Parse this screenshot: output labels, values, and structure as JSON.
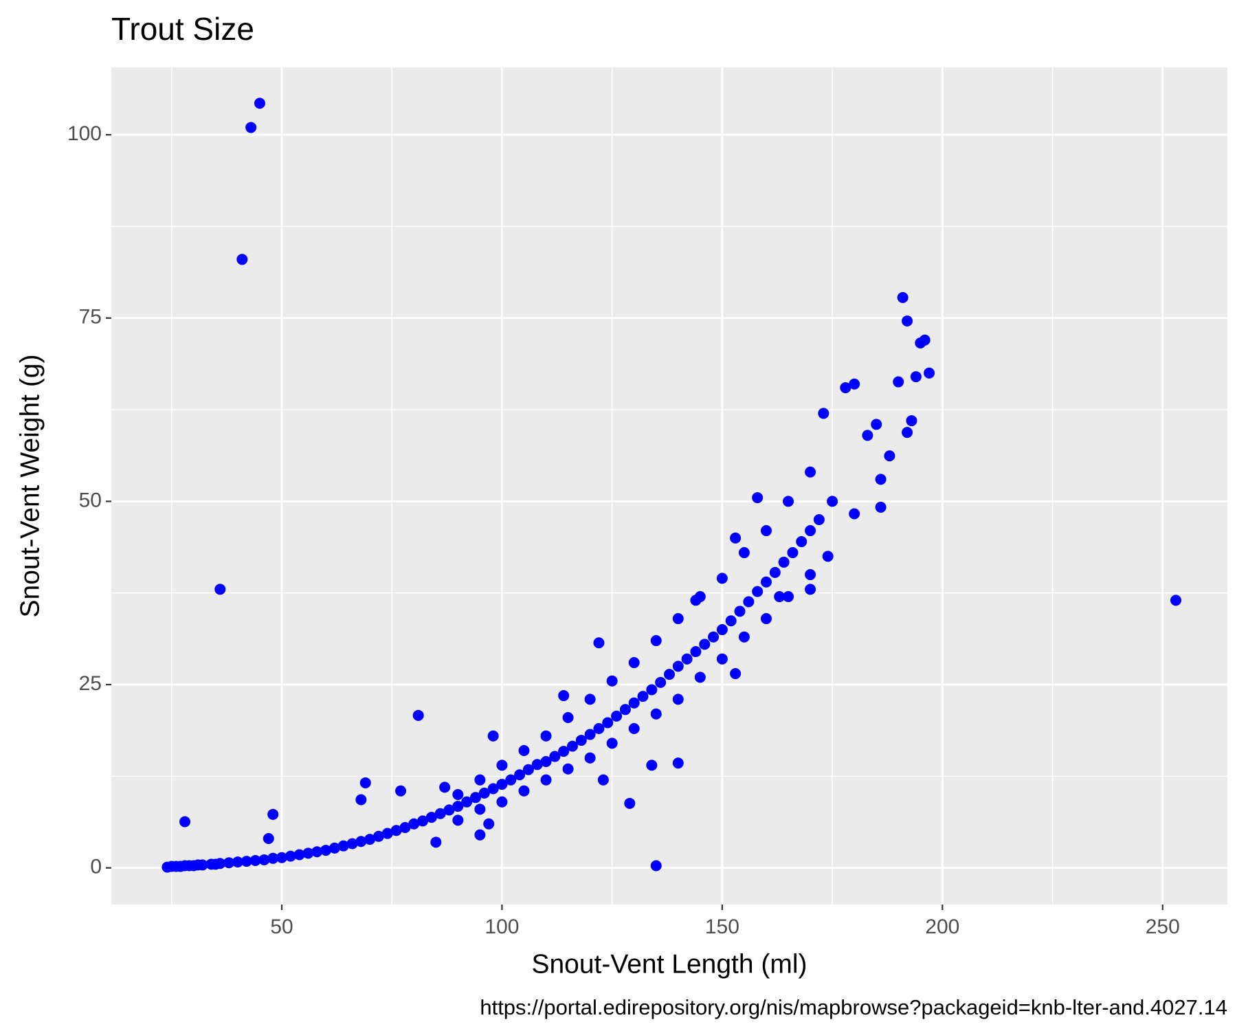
{
  "chart_data": {
    "type": "scatter",
    "title": "Trout Size",
    "x_label": "Snout-Vent Length (ml)",
    "y_label": "Snout-Vent Weight (g)",
    "caption": "https://portal.edirepository.org/nis/mapbrowse?packageid=knb-lter-and.4027.14",
    "color": "#0000ff",
    "grid": true,
    "minor_grid": true,
    "xlim": [
      11.3,
      264.7
    ],
    "ylim": [
      -5,
      109.2
    ],
    "xticks": [
      50,
      100,
      150,
      200,
      250
    ],
    "yticks": [
      0,
      25,
      50,
      75,
      100
    ],
    "x": [
      24,
      25,
      26,
      27,
      28,
      29,
      30,
      31,
      32,
      34,
      35,
      36,
      38,
      40,
      42,
      44,
      46,
      48,
      50,
      52,
      54,
      56,
      58,
      60,
      62,
      64,
      66,
      68,
      70,
      72,
      74,
      76,
      78,
      80,
      82,
      84,
      86,
      88,
      90,
      92,
      94,
      96,
      98,
      100,
      102,
      104,
      106,
      108,
      110,
      112,
      114,
      116,
      118,
      120,
      122,
      124,
      126,
      128,
      130,
      132,
      134,
      136,
      138,
      140,
      142,
      144,
      146,
      148,
      150,
      152,
      154,
      156,
      158,
      160,
      162,
      164,
      166,
      168,
      170,
      172,
      175,
      90,
      95,
      100,
      105,
      110,
      115,
      120,
      125,
      130,
      135,
      140,
      145,
      150,
      155,
      160,
      165,
      170,
      90,
      95,
      100,
      105,
      110,
      115,
      120,
      125,
      130,
      135,
      140,
      145,
      150,
      155,
      160,
      165,
      170,
      45,
      43,
      41,
      36,
      253,
      81,
      122,
      135,
      129,
      28,
      48,
      47,
      69,
      68,
      77,
      98,
      114,
      140,
      134,
      191,
      192,
      195,
      196,
      197,
      194,
      190,
      180,
      178,
      173,
      193,
      192,
      185,
      183,
      188,
      186,
      186,
      180,
      174,
      170,
      163,
      153,
      158,
      153,
      144,
      85,
      95,
      123,
      87,
      97
    ],
    "y": [
      0.1,
      0.2,
      0.2,
      0.2,
      0.3,
      0.3,
      0.3,
      0.4,
      0.4,
      0.5,
      0.5,
      0.6,
      0.7,
      0.8,
      0.9,
      1.0,
      1.1,
      1.3,
      1.4,
      1.6,
      1.8,
      2.0,
      2.2,
      2.4,
      2.7,
      3.0,
      3.3,
      3.6,
      3.9,
      4.3,
      4.7,
      5.1,
      5.5,
      6.0,
      6.4,
      6.9,
      7.4,
      7.9,
      8.4,
      9.0,
      9.6,
      10.2,
      10.8,
      11.4,
      12.0,
      12.7,
      13.4,
      14.1,
      14.5,
      15.2,
      15.9,
      16.6,
      17.4,
      18.2,
      19.0,
      19.8,
      20.7,
      21.6,
      22.5,
      23.4,
      24.3,
      25.3,
      26.4,
      27.5,
      28.5,
      29.5,
      30.5,
      31.5,
      32.5,
      33.7,
      35,
      36.3,
      37.7,
      39,
      40.3,
      41.7,
      43,
      44.5,
      46,
      47.5,
      50,
      10,
      12,
      14,
      16,
      18,
      20.5,
      23,
      25.5,
      28,
      31,
      34,
      37,
      39.5,
      43,
      46,
      50,
      54,
      6.5,
      8,
      9,
      10.5,
      12,
      13.5,
      15,
      17,
      19,
      21,
      23,
      26,
      28.5,
      31.5,
      34,
      37,
      40,
      104.3,
      101,
      83,
      38,
      36.5,
      20.8,
      30.7,
      0.3,
      8.8,
      6.3,
      7.3,
      4,
      11.6,
      9.3,
      10.5,
      18,
      23.5,
      14.3,
      14,
      77.8,
      74.6,
      71.6,
      72,
      67.5,
      67,
      66.3,
      66,
      65.5,
      62,
      61,
      59.4,
      60.5,
      59,
      56.2,
      53,
      49.2,
      48.3,
      42.5,
      38,
      37,
      26.5,
      50.5,
      45,
      36.5,
      3.5,
      4.5,
      12,
      11,
      6
    ]
  }
}
